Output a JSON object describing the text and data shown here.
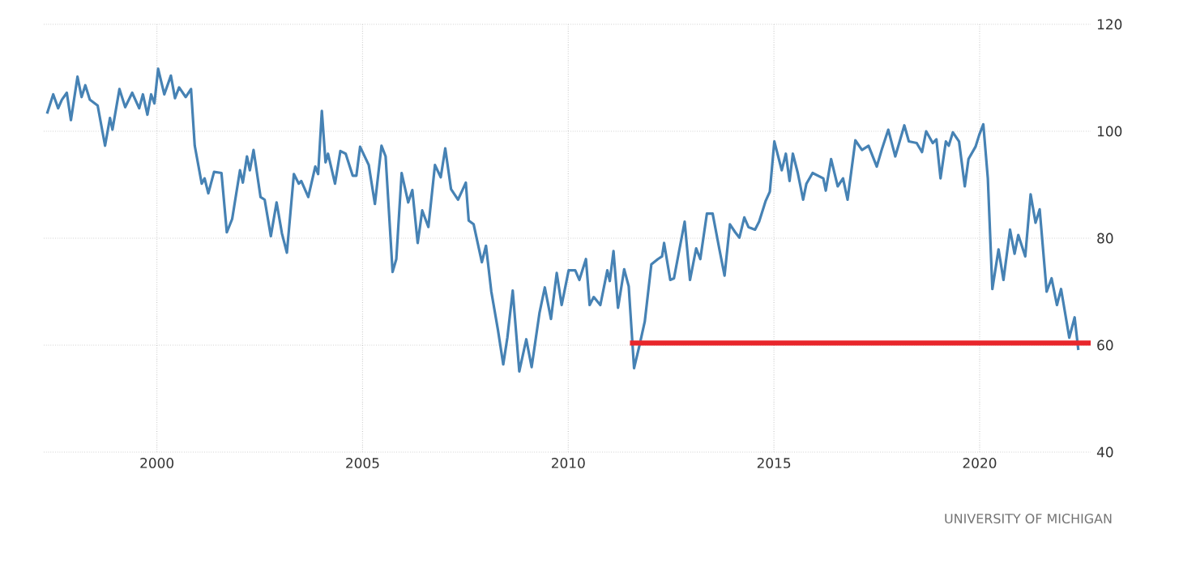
{
  "chart_data": {
    "type": "line",
    "annotations": [
      "UNIVERSITY OF MICHIGAN"
    ],
    "xlim": [
      1997.25,
      2022.7
    ],
    "ylim": [
      40,
      120
    ],
    "xticks": [
      2000,
      2005,
      2010,
      2015,
      2020
    ],
    "yticks": [
      40,
      60,
      80,
      100,
      120
    ],
    "grid": true,
    "marker": "none",
    "line_style": "solid",
    "series": [
      {
        "color": "#4682b4",
        "x": [
          1997.33,
          1997.48,
          1997.6,
          1997.69,
          1997.81,
          1997.91,
          1998.07,
          1998.17,
          1998.26,
          1998.37,
          1998.56,
          1998.74,
          1998.86,
          1998.92,
          1999.09,
          1999.23,
          1999.4,
          1999.57,
          1999.66,
          1999.77,
          1999.86,
          1999.94,
          2000.03,
          2000.18,
          2000.34,
          2000.44,
          2000.54,
          2000.7,
          2000.83,
          2000.92,
          2001.09,
          2001.16,
          2001.25,
          2001.39,
          2001.57,
          2001.7,
          2001.83,
          2002.02,
          2002.09,
          2002.19,
          2002.26,
          2002.35,
          2002.52,
          2002.62,
          2002.77,
          2002.91,
          2003.04,
          2003.16,
          2003.33,
          2003.45,
          2003.51,
          2003.68,
          2003.85,
          2003.92,
          2004.01,
          2004.1,
          2004.16,
          2004.33,
          2004.46,
          2004.59,
          2004.76,
          2004.85,
          2004.94,
          2005.15,
          2005.3,
          2005.46,
          2005.56,
          2005.73,
          2005.82,
          2005.95,
          2006.11,
          2006.21,
          2006.34,
          2006.45,
          2006.6,
          2006.76,
          2006.9,
          2007.01,
          2007.15,
          2007.32,
          2007.41,
          2007.51,
          2007.58,
          2007.7,
          2007.9,
          2008.0,
          2008.13,
          2008.29,
          2008.42,
          2008.52,
          2008.65,
          2008.81,
          2008.98,
          2009.11,
          2009.3,
          2009.43,
          2009.58,
          2009.72,
          2009.84,
          2010.01,
          2010.17,
          2010.27,
          2010.43,
          2010.52,
          2010.62,
          2010.78,
          2010.95,
          2011.01,
          2011.1,
          2011.21,
          2011.36,
          2011.47,
          2011.6,
          2011.73,
          2011.86,
          2012.02,
          2012.18,
          2012.28,
          2012.33,
          2012.48,
          2012.57,
          2012.83,
          2012.96,
          2013.11,
          2013.21,
          2013.37,
          2013.51,
          2013.67,
          2013.8,
          2013.93,
          2014.06,
          2014.16,
          2014.28,
          2014.38,
          2014.54,
          2014.64,
          2014.8,
          2014.9,
          2015.01,
          2015.19,
          2015.29,
          2015.38,
          2015.46,
          2015.58,
          2015.71,
          2015.79,
          2015.94,
          2016.2,
          2016.26,
          2016.39,
          2016.55,
          2016.68,
          2016.79,
          2016.98,
          2017.14,
          2017.3,
          2017.5,
          2017.63,
          2017.78,
          2017.95,
          2018.17,
          2018.28,
          2018.47,
          2018.6,
          2018.7,
          2018.86,
          2018.95,
          2019.05,
          2019.18,
          2019.25,
          2019.35,
          2019.5,
          2019.64,
          2019.73,
          2019.9,
          2019.99,
          2020.09,
          2020.2,
          2020.31,
          2020.46,
          2020.58,
          2020.74,
          2020.85,
          2020.94,
          2021.11,
          2021.24,
          2021.36,
          2021.46,
          2021.63,
          2021.75,
          2021.88,
          2021.98,
          2022.18,
          2022.31,
          2022.4
        ],
        "values": [
          103.3,
          106.9,
          104.3,
          105.9,
          107.2,
          102.1,
          110.2,
          106.4,
          108.6,
          105.9,
          104.8,
          97.3,
          102.5,
          100.3,
          107.9,
          104.5,
          107.2,
          104.3,
          106.9,
          103.1,
          106.9,
          105.2,
          111.7,
          106.9,
          110.4,
          106.2,
          108.2,
          106.4,
          107.9,
          97.3,
          90.2,
          91.2,
          88.4,
          92.4,
          92.2,
          81.1,
          83.6,
          92.7,
          90.4,
          95.3,
          92.7,
          96.5,
          87.7,
          87.2,
          80.4,
          86.7,
          80.9,
          77.3,
          92.0,
          90.2,
          90.7,
          87.7,
          93.4,
          92.0,
          103.8,
          94.2,
          95.8,
          90.2,
          96.3,
          95.8,
          91.7,
          91.7,
          97.1,
          93.7,
          86.4,
          97.3,
          95.3,
          73.7,
          76.1,
          92.2,
          86.7,
          89.0,
          79.1,
          85.2,
          82.1,
          93.7,
          91.4,
          96.8,
          89.2,
          87.2,
          88.7,
          90.4,
          83.3,
          82.6,
          75.5,
          78.6,
          70.0,
          62.9,
          56.4,
          61.4,
          70.2,
          55.1,
          61.1,
          55.9,
          66.0,
          70.8,
          64.9,
          73.5,
          67.5,
          74.0,
          74.0,
          72.2,
          76.1,
          67.5,
          69.0,
          67.5,
          74.0,
          72.0,
          77.6,
          67.0,
          74.2,
          71.0,
          55.7,
          59.9,
          64.4,
          75.1,
          76.1,
          76.6,
          79.1,
          72.2,
          72.5,
          83.1,
          72.2,
          78.1,
          76.1,
          84.6,
          84.6,
          78.1,
          73.0,
          82.6,
          81.1,
          80.1,
          83.9,
          82.1,
          81.6,
          83.1,
          87.0,
          88.7,
          98.1,
          92.7,
          95.8,
          90.7,
          95.8,
          92.2,
          87.2,
          90.2,
          92.2,
          91.2,
          88.9,
          94.8,
          89.7,
          91.2,
          87.2,
          98.3,
          96.5,
          97.3,
          93.4,
          96.8,
          100.3,
          95.3,
          101.1,
          98.1,
          97.8,
          96.1,
          100.0,
          97.8,
          98.5,
          91.2,
          98.1,
          97.3,
          99.8,
          98.1,
          89.7,
          94.8,
          97.1,
          99.3,
          101.3,
          91.2,
          70.5,
          77.9,
          72.2,
          81.6,
          77.1,
          80.6,
          76.6,
          88.2,
          82.9,
          85.4,
          70.0,
          72.5,
          67.5,
          70.5,
          61.4,
          65.2,
          59.1
        ]
      },
      {
        "color": "#e8262b",
        "x": [
          2011.5,
          2022.7
        ],
        "values": [
          60.4,
          60.4
        ]
      }
    ]
  }
}
